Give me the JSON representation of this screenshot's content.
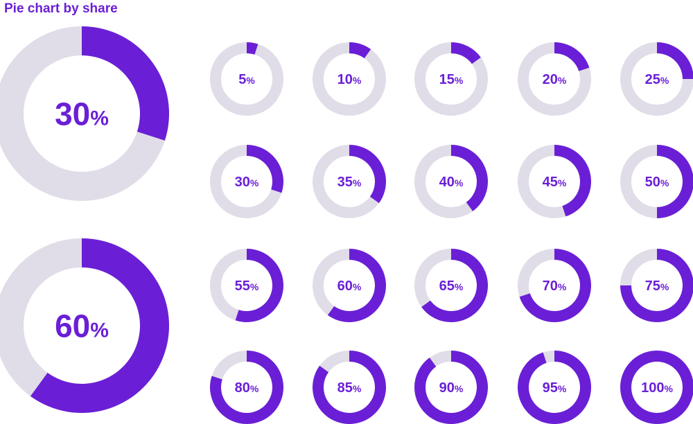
{
  "title": "Pie chart by share",
  "side_id": "601243153",
  "colors": {
    "accent": "#6a1fd6",
    "track": "#e0dde8",
    "watermark": "#d9d9dd"
  },
  "chart_data": {
    "type": "pie",
    "title": "Pie chart by share",
    "large": [
      {
        "value": 30,
        "label": "30",
        "unit": "%"
      },
      {
        "value": 60,
        "label": "60",
        "unit": "%"
      }
    ],
    "small": [
      {
        "value": 5,
        "label": "5",
        "unit": "%"
      },
      {
        "value": 10,
        "label": "10",
        "unit": "%"
      },
      {
        "value": 15,
        "label": "15",
        "unit": "%"
      },
      {
        "value": 20,
        "label": "20",
        "unit": "%"
      },
      {
        "value": 25,
        "label": "25",
        "unit": "%"
      },
      {
        "value": 30,
        "label": "30",
        "unit": "%"
      },
      {
        "value": 35,
        "label": "35",
        "unit": "%"
      },
      {
        "value": 40,
        "label": "40",
        "unit": "%"
      },
      {
        "value": 45,
        "label": "45",
        "unit": "%"
      },
      {
        "value": 50,
        "label": "50",
        "unit": "%"
      },
      {
        "value": 55,
        "label": "55",
        "unit": "%"
      },
      {
        "value": 60,
        "label": "60",
        "unit": "%"
      },
      {
        "value": 65,
        "label": "65",
        "unit": "%"
      },
      {
        "value": 70,
        "label": "70",
        "unit": "%"
      },
      {
        "value": 75,
        "label": "75",
        "unit": "%"
      },
      {
        "value": 80,
        "label": "80",
        "unit": "%"
      },
      {
        "value": 85,
        "label": "85",
        "unit": "%"
      },
      {
        "value": 90,
        "label": "90",
        "unit": "%"
      },
      {
        "value": 95,
        "label": "95",
        "unit": "%"
      },
      {
        "value": 100,
        "label": "100",
        "unit": "%"
      }
    ]
  }
}
